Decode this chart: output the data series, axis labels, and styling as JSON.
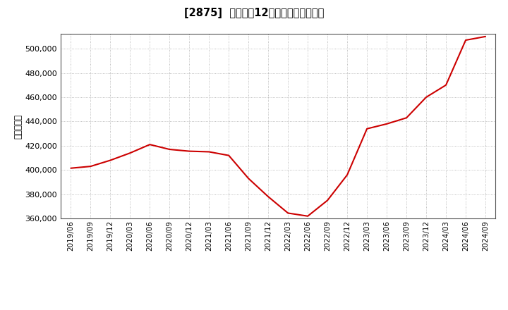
{
  "title": "[2875]  売上高の12か月移動合計の推移",
  "ylabel": "（百万円）",
  "line_color": "#cc0000",
  "background_color": "#ffffff",
  "plot_bg_color": "#ffffff",
  "grid_color": "#aaaaaa",
  "ylim": [
    360000,
    512000
  ],
  "yticks": [
    360000,
    380000,
    400000,
    420000,
    440000,
    460000,
    480000,
    500000
  ],
  "dates": [
    "2019/06",
    "2019/09",
    "2019/12",
    "2020/03",
    "2020/06",
    "2020/09",
    "2020/12",
    "2021/03",
    "2021/06",
    "2021/09",
    "2021/12",
    "2022/03",
    "2022/06",
    "2022/09",
    "2022/12",
    "2023/03",
    "2023/06",
    "2023/09",
    "2023/12",
    "2024/03",
    "2024/06",
    "2024/09"
  ],
  "values": [
    401500,
    403000,
    408000,
    414000,
    421000,
    417000,
    415500,
    415000,
    412000,
    393000,
    378000,
    364500,
    362000,
    375000,
    396000,
    434000,
    438000,
    443000,
    460000,
    470000,
    507000,
    510000
  ]
}
